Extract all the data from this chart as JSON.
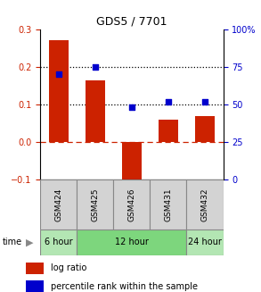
{
  "title": "GDS5 / 7701",
  "samples": [
    "GSM424",
    "GSM425",
    "GSM426",
    "GSM431",
    "GSM432"
  ],
  "log_ratio": [
    0.27,
    0.165,
    -0.115,
    0.06,
    0.07
  ],
  "percentile_rank": [
    70,
    75,
    48,
    52,
    52
  ],
  "bar_color": "#cc2200",
  "dot_color": "#0000cc",
  "ylim_left": [
    -0.1,
    0.3
  ],
  "ylim_right": [
    0,
    100
  ],
  "yticks_left": [
    -0.1,
    0.0,
    0.1,
    0.2,
    0.3
  ],
  "yticks_right": [
    0,
    25,
    50,
    75,
    100
  ],
  "dotted_lines": [
    0.1,
    0.2
  ],
  "zero_line": 0.0,
  "time_groups": [
    {
      "label": "6 hour",
      "start": 0,
      "end": 1,
      "color": "#b3e6b3"
    },
    {
      "label": "12 hour",
      "start": 1,
      "end": 4,
      "color": "#7dd67d"
    },
    {
      "label": "24 hour",
      "start": 4,
      "end": 5,
      "color": "#b3e6b3"
    }
  ],
  "legend_items": [
    {
      "label": "log ratio",
      "color": "#cc2200"
    },
    {
      "label": "percentile rank within the sample",
      "color": "#0000cc"
    }
  ],
  "time_label": "time",
  "bar_width": 0.55,
  "sample_label_bg": "#d3d3d3",
  "sample_label_border": "#888888"
}
